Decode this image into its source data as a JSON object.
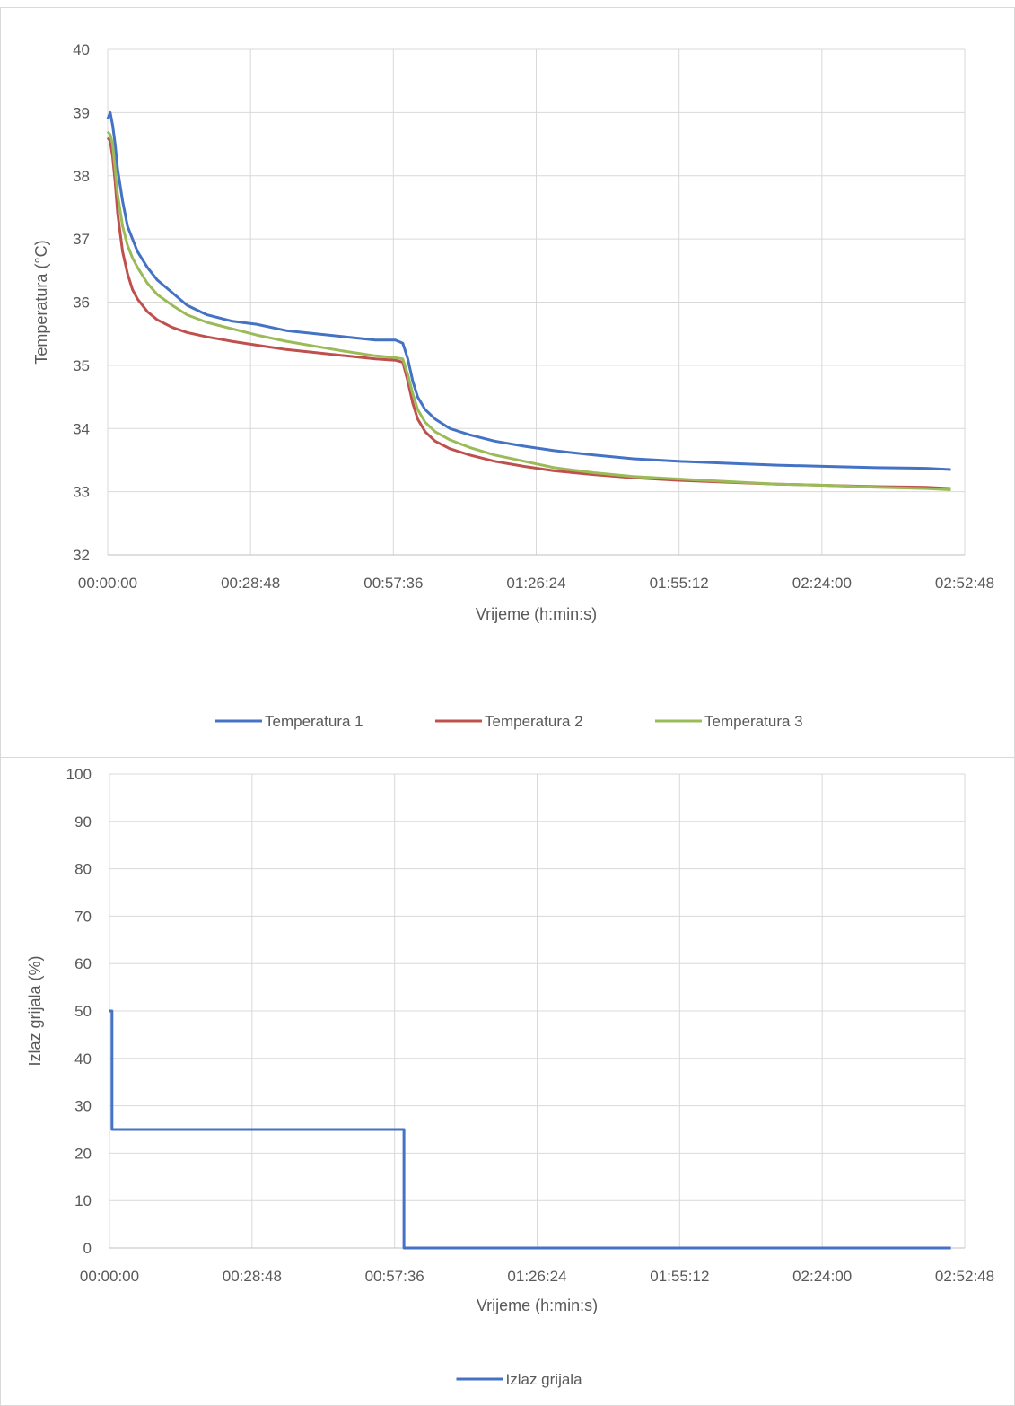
{
  "chart_data": [
    {
      "type": "line",
      "title": "",
      "xlabel": "Vrijeme (h:min:s)",
      "ylabel": "Temperatura (°C)",
      "xlim": [
        "00:00:00",
        "02:52:48"
      ],
      "ylim": [
        32,
        40
      ],
      "x_ticks": [
        "00:00:00",
        "00:28:48",
        "00:57:36",
        "01:26:24",
        "01:55:12",
        "02:24:00",
        "02:52:48"
      ],
      "y_ticks": [
        "32",
        "33",
        "34",
        "35",
        "36",
        "37",
        "38",
        "39",
        "40"
      ],
      "grid": true,
      "legend_position": "bottom",
      "series": [
        {
          "name": "Temperatura 1",
          "color": "#4472c4",
          "x": [
            "00:00:00",
            "00:00:30",
            "00:01:00",
            "00:01:30",
            "00:02:00",
            "00:03:00",
            "00:04:00",
            "00:05:00",
            "00:06:00",
            "00:08:00",
            "00:10:00",
            "00:13:00",
            "00:16:00",
            "00:20:00",
            "00:25:00",
            "00:30:00",
            "00:36:00",
            "00:42:00",
            "00:48:00",
            "00:54:00",
            "00:58:00",
            "00:59:30",
            "01:00:30",
            "01:01:30",
            "01:02:30",
            "01:04:00",
            "01:06:00",
            "01:09:00",
            "01:13:00",
            "01:18:00",
            "01:24:00",
            "01:30:00",
            "01:38:00",
            "01:46:00",
            "01:55:00",
            "02:05:00",
            "02:15:00",
            "02:25:00",
            "02:35:00",
            "02:45:00",
            "02:50:00"
          ],
          "values": [
            38.9,
            39.0,
            38.8,
            38.5,
            38.1,
            37.6,
            37.2,
            37.0,
            36.8,
            36.55,
            36.35,
            36.15,
            35.95,
            35.8,
            35.7,
            35.65,
            35.55,
            35.5,
            35.45,
            35.4,
            35.4,
            35.35,
            35.1,
            34.75,
            34.5,
            34.3,
            34.15,
            34.0,
            33.9,
            33.8,
            33.72,
            33.65,
            33.58,
            33.52,
            33.48,
            33.45,
            33.42,
            33.4,
            33.38,
            33.37,
            33.35
          ]
        },
        {
          "name": "Temperatura 2",
          "color": "#c0504d",
          "x": [
            "00:00:00",
            "00:00:30",
            "00:01:00",
            "00:01:30",
            "00:02:00",
            "00:03:00",
            "00:04:00",
            "00:05:00",
            "00:06:00",
            "00:08:00",
            "00:10:00",
            "00:13:00",
            "00:16:00",
            "00:20:00",
            "00:25:00",
            "00:30:00",
            "00:36:00",
            "00:42:00",
            "00:48:00",
            "00:54:00",
            "00:58:00",
            "00:59:30",
            "01:00:30",
            "01:01:30",
            "01:02:30",
            "01:04:00",
            "01:06:00",
            "01:09:00",
            "01:13:00",
            "01:18:00",
            "01:24:00",
            "01:30:00",
            "01:38:00",
            "01:46:00",
            "01:55:00",
            "02:05:00",
            "02:15:00",
            "02:25:00",
            "02:35:00",
            "02:45:00",
            "02:50:00"
          ],
          "values": [
            38.6,
            38.55,
            38.3,
            37.9,
            37.4,
            36.8,
            36.45,
            36.2,
            36.05,
            35.85,
            35.72,
            35.6,
            35.52,
            35.45,
            35.38,
            35.32,
            35.25,
            35.2,
            35.15,
            35.1,
            35.08,
            35.05,
            34.75,
            34.4,
            34.15,
            33.95,
            33.8,
            33.68,
            33.58,
            33.48,
            33.4,
            33.33,
            33.27,
            33.22,
            33.18,
            33.15,
            33.12,
            33.1,
            33.08,
            33.07,
            33.05
          ]
        },
        {
          "name": "Temperatura 3",
          "color": "#9bbb59",
          "x": [
            "00:00:00",
            "00:00:30",
            "00:01:00",
            "00:01:30",
            "00:02:00",
            "00:03:00",
            "00:04:00",
            "00:05:00",
            "00:06:00",
            "00:08:00",
            "00:10:00",
            "00:13:00",
            "00:16:00",
            "00:20:00",
            "00:25:00",
            "00:30:00",
            "00:36:00",
            "00:42:00",
            "00:48:00",
            "00:54:00",
            "00:58:00",
            "00:59:30",
            "01:00:30",
            "01:01:30",
            "01:02:30",
            "01:04:00",
            "01:06:00",
            "01:09:00",
            "01:13:00",
            "01:18:00",
            "01:24:00",
            "01:30:00",
            "01:38:00",
            "01:46:00",
            "01:55:00",
            "02:05:00",
            "02:15:00",
            "02:25:00",
            "02:35:00",
            "02:45:00",
            "02:50:00"
          ],
          "values": [
            38.7,
            38.65,
            38.5,
            38.1,
            37.7,
            37.2,
            36.9,
            36.7,
            36.55,
            36.3,
            36.12,
            35.95,
            35.8,
            35.68,
            35.58,
            35.48,
            35.38,
            35.3,
            35.22,
            35.15,
            35.12,
            35.1,
            34.85,
            34.55,
            34.3,
            34.1,
            33.95,
            33.82,
            33.7,
            33.58,
            33.48,
            33.38,
            33.3,
            33.24,
            33.2,
            33.16,
            33.12,
            33.1,
            33.07,
            33.05,
            33.03
          ]
        }
      ]
    },
    {
      "type": "line",
      "title": "",
      "xlabel": "Vrijeme (h:min:s)",
      "ylabel": "Izlaz grijala (%)",
      "xlim": [
        "00:00:00",
        "02:52:48"
      ],
      "ylim": [
        0,
        100
      ],
      "x_ticks": [
        "00:00:00",
        "00:28:48",
        "00:57:36",
        "01:26:24",
        "01:55:12",
        "02:24:00",
        "02:52:48"
      ],
      "y_ticks": [
        "0",
        "10",
        "20",
        "30",
        "40",
        "50",
        "60",
        "70",
        "80",
        "90",
        "100"
      ],
      "grid": true,
      "legend_position": "bottom",
      "series": [
        {
          "name": "Izlaz grijala",
          "color": "#4472c4",
          "x": [
            "00:00:00",
            "00:00:30",
            "00:00:30",
            "00:59:30",
            "00:59:30",
            "02:50:00"
          ],
          "values": [
            50,
            50,
            25,
            25,
            0,
            0
          ]
        }
      ]
    }
  ]
}
